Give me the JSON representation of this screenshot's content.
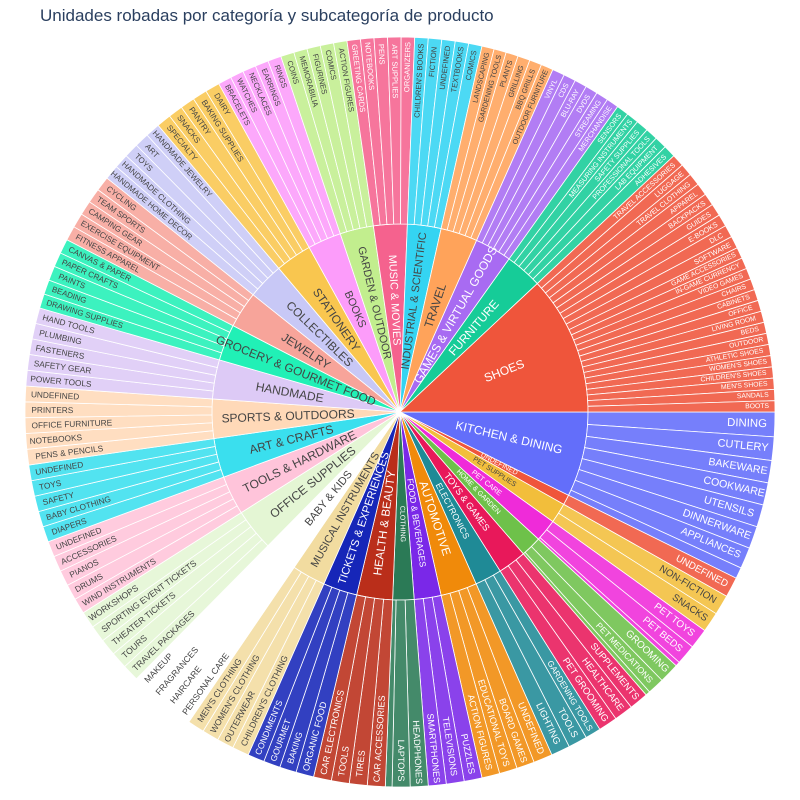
{
  "colors": {
    "KITCHEN & DINING": "#636EFA",
    "UNDEFINED": "#EF553B",
    "PET SUPPLIES": "#F2BE3B",
    "PET CARE": "#EF2BD9",
    "HOME & GARDEN": "#6EC14A",
    "TOYS & GAMES": "#E8185A",
    "ELECTRONICS": "#1F8A96",
    "AUTOMOTIVE": "#F08A0A",
    "FOOD & BEVERAGES": "#7A28E8",
    "CLOTHING": "#2B7A56",
    "HEALTH & BEAUTY": "#BA2E1A",
    "TICKETS & EXPERIENCES": "#1626B8",
    "MUSICAL INSTRUMENTS": "#F2DCA0",
    "BABY & KIDS": "#FFFFFF",
    "OFFICE SUPPLIES": "#E4F6D4",
    "TOOLS & HARDWARE": "#FFC4DA",
    "ART & CRAFTS": "#3ADFEE",
    "SPORTS & OUTDOORS": "#FFD9B8",
    "HANDMADE": "#DDCAF6",
    "GROCERY & GOURMET FOOD": "#21F0B6",
    "JEWELRY": "#F7A49A",
    "COLLECTIBLES": "#C8C8F6",
    "STATIONERY": "#F9C64F",
    "BOOKS": "#FC9CFA",
    "GARDEN & OUTDOOR": "#C2EE8E",
    "MUSIC & MOVIES": "#F5628E",
    "INDUSTRIAL & SCIENTIFIC": "#34D4F2",
    "TRAVEL": "#FFA35A",
    "GAMES & VIRTUAL GOODS": "#A86BF2",
    "FURNITURE": "#16CC98",
    "SHOES": "#EF553B"
  },
  "chart_data": {
    "type": "sunburst",
    "title": "Unidades robadas por categoría y subcategoría de producto",
    "categories": [
      {
        "name": "KITCHEN & DINING",
        "children": [
          {
            "name": "DINING",
            "value": 22
          },
          {
            "name": "CUTLERY",
            "value": 21
          },
          {
            "name": "BAKEWARE",
            "value": 20
          },
          {
            "name": "COOKWARE",
            "value": 20
          },
          {
            "name": "UTENSILS",
            "value": 20
          },
          {
            "name": "DINNERWARE",
            "value": 20
          },
          {
            "name": "APPLIANCES",
            "value": 19
          },
          {
            "name": "",
            "value": 10
          }
        ]
      },
      {
        "name": "UNDEFINED",
        "children": [
          {
            "name": "UNDEFINED",
            "value": 18
          }
        ]
      },
      {
        "name": "PET SUPPLIES",
        "children": [
          {
            "name": "NON-FICTION",
            "value": 18
          },
          {
            "name": "SNACKS",
            "value": 18
          }
        ]
      },
      {
        "name": "PET CARE",
        "children": [
          {
            "name": "PET TOYS",
            "value": 18
          },
          {
            "name": "PET BEDS",
            "value": 18
          },
          {
            "name": "",
            "value": 4
          }
        ]
      },
      {
        "name": "HOME & GARDEN",
        "children": [
          {
            "name": "GROOMING",
            "value": 18
          },
          {
            "name": "PET MEDICATIONS",
            "value": 15
          },
          {
            "name": "",
            "value": 4
          }
        ]
      },
      {
        "name": "TOYS & GAMES",
        "children": [
          {
            "name": "SUPPLEMENTS",
            "value": 17
          },
          {
            "name": "HEALTHCARE",
            "value": 17
          },
          {
            "name": "PET GROOMING",
            "value": 17
          }
        ]
      },
      {
        "name": "ELECTRONICS",
        "children": [
          {
            "name": "GARDENING TOOLS",
            "value": 14
          },
          {
            "name": "TOOLS",
            "value": 17
          },
          {
            "name": "LIGHTING",
            "value": 17
          }
        ]
      },
      {
        "name": "AUTOMOTIVE",
        "children": [
          {
            "name": "UNDEFINED",
            "value": 17
          },
          {
            "name": "BOARD GAMES",
            "value": 16
          },
          {
            "name": "EDUCATIONAL TOYS",
            "value": 16
          },
          {
            "name": "ACTION FIGURES",
            "value": 16
          }
        ]
      },
      {
        "name": "FOOD & BEVERAGES",
        "children": [
          {
            "name": "PUZZLES",
            "value": 16
          },
          {
            "name": "TELEVISIONS",
            "value": 16
          },
          {
            "name": "SMARTPHONES",
            "value": 16
          }
        ]
      },
      {
        "name": "CLOTHING",
        "children": [
          {
            "name": "HEADPHONES",
            "value": 16
          },
          {
            "name": "LAPTOPS",
            "value": 16
          },
          {
            "name": "",
            "value": 6
          }
        ]
      },
      {
        "name": "HEALTH & BEAUTY",
        "children": [
          {
            "name": "CAR ACCESSORIES",
            "value": 16
          },
          {
            "name": "TIRES",
            "value": 16
          },
          {
            "name": "TOOLS",
            "value": 16
          },
          {
            "name": "CAR ELECTRONICS",
            "value": 16
          }
        ]
      },
      {
        "name": "TICKETS & EXPERIENCES",
        "children": [
          {
            "name": "ORGANIC FOOD",
            "value": 16
          },
          {
            "name": "BAKING",
            "value": 15
          },
          {
            "name": "GOURMET",
            "value": 15
          },
          {
            "name": "CONDIMENTS",
            "value": 15
          }
        ]
      },
      {
        "name": "MUSICAL INSTRUMENTS",
        "children": [
          {
            "name": "CHILDREN'S CLOTHING",
            "value": 15
          },
          {
            "name": "OUTERWEAR",
            "value": 15
          },
          {
            "name": "WOMEN'S CLOTHING",
            "value": 15
          },
          {
            "name": "MEN'S CLOTHING",
            "value": 15
          }
        ]
      },
      {
        "name": "BABY & KIDS",
        "children": [
          {
            "name": "PERSONAL CARE",
            "value": 15
          },
          {
            "name": "HAIRCARE",
            "value": 15
          },
          {
            "name": "FRAGRANCES",
            "value": 15
          },
          {
            "name": "MAKEUP",
            "value": 15
          }
        ]
      },
      {
        "name": "OFFICE SUPPLIES",
        "children": [
          {
            "name": "TRAVEL PACKAGES",
            "value": 15
          },
          {
            "name": "TOURS",
            "value": 15
          },
          {
            "name": "THEATER TICKETS",
            "value": 15
          },
          {
            "name": "SPORTING EVENT TICKETS",
            "value": 15
          },
          {
            "name": "WORKSHOPS",
            "value": 15
          }
        ]
      },
      {
        "name": "TOOLS & HARDWARE",
        "children": [
          {
            "name": "WIND INSTRUMENTS",
            "value": 14
          },
          {
            "name": "DRUMS",
            "value": 14
          },
          {
            "name": "PIANOS",
            "value": 14
          },
          {
            "name": "ACCESSORIES",
            "value": 14
          },
          {
            "name": "UNDEFINED",
            "value": 14
          }
        ]
      },
      {
        "name": "ART & CRAFTS",
        "children": [
          {
            "name": "DIAPERS",
            "value": 14
          },
          {
            "name": "BABY CLOTHING",
            "value": 14
          },
          {
            "name": "SAFETY",
            "value": 14
          },
          {
            "name": "TOYS",
            "value": 14
          },
          {
            "name": "UNDEFINED",
            "value": 14
          }
        ]
      },
      {
        "name": "SPORTS & OUTDOORS",
        "children": [
          {
            "name": "PENS & PENCILS",
            "value": 14
          },
          {
            "name": "NOTEBOOKS",
            "value": 14
          },
          {
            "name": "OFFICE FURNITURE",
            "value": 14
          },
          {
            "name": "PRINTERS",
            "value": 14
          },
          {
            "name": "UNDEFINED",
            "value": 14
          }
        ]
      },
      {
        "name": "HANDMADE",
        "children": [
          {
            "name": "POWER TOOLS",
            "value": 14
          },
          {
            "name": "SAFETY GEAR",
            "value": 14
          },
          {
            "name": "FASTENERS",
            "value": 14
          },
          {
            "name": "PLUMBING",
            "value": 14
          },
          {
            "name": "HAND TOOLS",
            "value": 14
          }
        ]
      },
      {
        "name": "GROCERY & GOURMET FOOD",
        "children": [
          {
            "name": "DRAWING SUPPLIES",
            "value": 13
          },
          {
            "name": "BEADING",
            "value": 13
          },
          {
            "name": "PAINTS",
            "value": 13
          },
          {
            "name": "PAPER CRAFTS",
            "value": 13
          },
          {
            "name": "CANVAS & PAPER",
            "value": 13
          }
        ]
      },
      {
        "name": "JEWELRY",
        "children": [
          {
            "name": "FITNESS APPAREL",
            "value": 13
          },
          {
            "name": "EXERCISE EQUIPMENT",
            "value": 13
          },
          {
            "name": "CAMPING GEAR",
            "value": 13
          },
          {
            "name": "TEAM SPORTS",
            "value": 13
          },
          {
            "name": "CYCLING",
            "value": 13
          }
        ]
      },
      {
        "name": "COLLECTIBLES",
        "children": [
          {
            "name": "HANDMADE HOME DECOR",
            "value": 13
          },
          {
            "name": "HANDMADE CLOTHING",
            "value": 13
          },
          {
            "name": "TOYS",
            "value": 13
          },
          {
            "name": "ART",
            "value": 13
          },
          {
            "name": "HANDMADE JEWELRY",
            "value": 13
          }
        ]
      },
      {
        "name": "STATIONERY",
        "children": [
          {
            "name": "SPECIALTY",
            "value": 13
          },
          {
            "name": "SNACKS",
            "value": 13
          },
          {
            "name": "PANTRY",
            "value": 13
          },
          {
            "name": "BAKING SUPPLIES",
            "value": 13
          },
          {
            "name": "DAIRY",
            "value": 13
          }
        ]
      },
      {
        "name": "BOOKS",
        "children": [
          {
            "name": "BRACELETS",
            "value": 12
          },
          {
            "name": "WATCHES",
            "value": 12
          },
          {
            "name": "NECKLACES",
            "value": 12
          },
          {
            "name": "EARRINGS",
            "value": 12
          },
          {
            "name": "RINGS",
            "value": 12
          }
        ]
      },
      {
        "name": "GARDEN & OUTDOOR",
        "children": [
          {
            "name": "COINS",
            "value": 12
          },
          {
            "name": "MEMORABILIA",
            "value": 12
          },
          {
            "name": "FIGURINES",
            "value": 12
          },
          {
            "name": "COMICS",
            "value": 12
          },
          {
            "name": "ACTION FIGURES",
            "value": 12
          }
        ]
      },
      {
        "name": "MUSIC & MOVIES",
        "children": [
          {
            "name": "GREETING CARDS",
            "value": 12
          },
          {
            "name": "NOTEBOOKS",
            "value": 12
          },
          {
            "name": "PENS",
            "value": 12
          },
          {
            "name": "ART SUPPLIES",
            "value": 12
          },
          {
            "name": "ORGANIZERS",
            "value": 12
          }
        ]
      },
      {
        "name": "INDUSTRIAL & SCIENTIFIC",
        "children": [
          {
            "name": "CHILDREN'S BOOKS",
            "value": 12
          },
          {
            "name": "FICTION",
            "value": 12
          },
          {
            "name": "UNDEFINED",
            "value": 12
          },
          {
            "name": "TEXTBOOKS",
            "value": 12
          },
          {
            "name": "COMICS",
            "value": 12
          }
        ]
      },
      {
        "name": "TRAVEL",
        "children": [
          {
            "name": "LANDSCAPING",
            "value": 11
          },
          {
            "name": "GARDENING TOOLS",
            "value": 11
          },
          {
            "name": "PLANTS",
            "value": 11
          },
          {
            "name": "GRILLING",
            "value": 11
          },
          {
            "name": "BBQ GRILLS",
            "value": 11
          },
          {
            "name": "OUTDOOR FURNITURE",
            "value": 11
          }
        ]
      },
      {
        "name": "GAMES & VIRTUAL GOODS",
        "children": [
          {
            "name": "VINYL",
            "value": 11
          },
          {
            "name": "CDS",
            "value": 11
          },
          {
            "name": "BLU-RAY",
            "value": 11
          },
          {
            "name": "DVDS",
            "value": 11
          },
          {
            "name": "STREAMING",
            "value": 11
          },
          {
            "name": "MERCHANDISE",
            "value": 11
          }
        ]
      },
      {
        "name": "FURNITURE",
        "children": [
          {
            "name": "SENSORS",
            "value": 11
          },
          {
            "name": "MEASURING INSTRUMENTS",
            "value": 11
          },
          {
            "name": "SAFETY SUPPLIES",
            "value": 11
          },
          {
            "name": "PROFESSIONAL TOOLS",
            "value": 11
          },
          {
            "name": "LAB EQUIPMENT",
            "value": 11
          },
          {
            "name": "ADHESIVES",
            "value": 11
          }
        ]
      },
      {
        "name": "SHOES",
        "children": [
          {
            "name": "TRAVEL ACCESSORIES",
            "value": 11
          },
          {
            "name": "LUGGAGE",
            "value": 11
          },
          {
            "name": "TRAVEL CLOTHING",
            "value": 11
          },
          {
            "name": "APPAREL",
            "value": 11
          },
          {
            "name": "BACKPACKS",
            "value": 11
          },
          {
            "name": "GUIDES",
            "value": 11
          },
          {
            "name": "E-BOOKS",
            "value": 11
          },
          {
            "name": "DLC",
            "value": 11
          },
          {
            "name": "SOFTWARE",
            "value": 11
          },
          {
            "name": "GAME ACCESSORIES",
            "value": 10
          },
          {
            "name": "IN-GAME CURRENCY",
            "value": 10
          },
          {
            "name": "VIDEO GAMES",
            "value": 10
          },
          {
            "name": "CHAIRS",
            "value": 10
          },
          {
            "name": "CABINETS",
            "value": 10
          },
          {
            "name": "OFFICE",
            "value": 10
          },
          {
            "name": "LIVING ROOM",
            "value": 10
          },
          {
            "name": "BEDS",
            "value": 10
          },
          {
            "name": "OUTDOOR",
            "value": 10
          },
          {
            "name": "ATHLETIC SHOES",
            "value": 10
          },
          {
            "name": "WOMEN'S SHOES",
            "value": 10
          },
          {
            "name": "CHILDREN'S SHOES",
            "value": 10
          },
          {
            "name": "MEN'S SHOES",
            "value": 10
          },
          {
            "name": "SANDALS",
            "value": 10
          },
          {
            "name": "BOOTS",
            "value": 10
          }
        ]
      }
    ]
  }
}
